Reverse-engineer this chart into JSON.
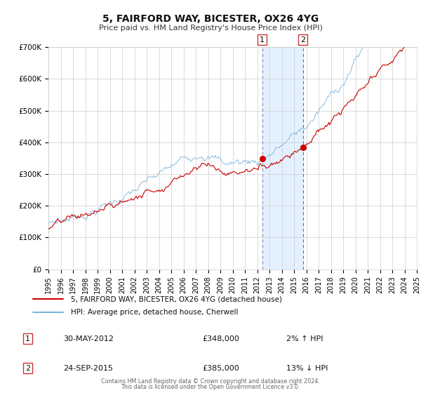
{
  "title": "5, FAIRFORD WAY, BICESTER, OX26 4YG",
  "subtitle": "Price paid vs. HM Land Registry's House Price Index (HPI)",
  "legend_line1": "5, FAIRFORD WAY, BICESTER, OX26 4YG (detached house)",
  "legend_line2": "HPI: Average price, detached house, Cherwell",
  "table_rows": [
    {
      "num": "1",
      "date": "30-MAY-2012",
      "price": "£348,000",
      "pct": "2% ↑ HPI"
    },
    {
      "num": "2",
      "date": "24-SEP-2015",
      "price": "£385,000",
      "pct": "13% ↓ HPI"
    }
  ],
  "footer1": "Contains HM Land Registry data © Crown copyright and database right 2024.",
  "footer2": "This data is licensed under the Open Government Licence v3.0.",
  "hpi_color": "#7ab4d8",
  "price_color": "#cc0000",
  "marker_color": "#cc0000",
  "bg_color": "#ffffff",
  "grid_color": "#cccccc",
  "vline1_x": 2012.41,
  "vline2_x": 2015.73,
  "shade_start": 2012.41,
  "shade_end": 2015.73,
  "marker1_x": 2012.41,
  "marker1_y": 348000,
  "marker2_x": 2015.73,
  "marker2_y": 385000,
  "ylim": [
    0,
    700000
  ],
  "xlim": [
    1995,
    2025
  ],
  "yticks": [
    0,
    100000,
    200000,
    300000,
    400000,
    500000,
    600000,
    700000
  ],
  "ytick_labels": [
    "£0",
    "£100K",
    "£200K",
    "£300K",
    "£400K",
    "£500K",
    "£600K",
    "£700K"
  ],
  "xticks": [
    1995,
    1996,
    1997,
    1998,
    1999,
    2000,
    2001,
    2002,
    2003,
    2004,
    2005,
    2006,
    2007,
    2008,
    2009,
    2010,
    2011,
    2012,
    2013,
    2014,
    2015,
    2016,
    2017,
    2018,
    2019,
    2020,
    2021,
    2022,
    2023,
    2024,
    2025
  ]
}
